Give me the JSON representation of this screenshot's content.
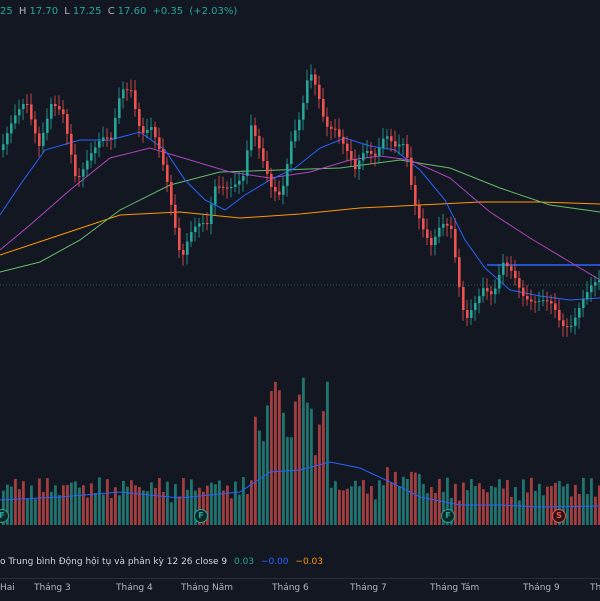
{
  "ohlc": {
    "open_fragment": "25",
    "high_key": "H",
    "high_value": "17.70",
    "low_key": "L",
    "low_value": "17.25",
    "close_key": "C",
    "close_value": "17.60",
    "change": "+0.35",
    "change_pct": "(+2.03%)"
  },
  "indicator": {
    "label": "o Trung bình Động hội tụ và phân kỳ",
    "params": "12 26 close 9",
    "v1": "0.03",
    "v2": "−0.00",
    "v3": "−0.03"
  },
  "axis_ticks": [
    "Hai",
    "Tháng 3",
    "Tháng 4",
    "Tháng Năm",
    "Tháng 6",
    "Tháng 7",
    "Tháng Tám",
    "Tháng 9",
    "Th"
  ],
  "badges": [
    {
      "letter": "F",
      "kind": "buy"
    },
    {
      "letter": "F",
      "kind": "buy"
    },
    {
      "letter": "F",
      "kind": "buy"
    },
    {
      "letter": "S",
      "kind": "sell"
    }
  ],
  "colors": {
    "background": "#131722",
    "up": "#26a69a",
    "down": "#ef5350",
    "ma_fast": "#2962ff",
    "ma_mid": "#ab47bc",
    "ma_slow": "#66bb6a",
    "ma_long": "#ff9800",
    "resistance": "#2962ff"
  }
}
